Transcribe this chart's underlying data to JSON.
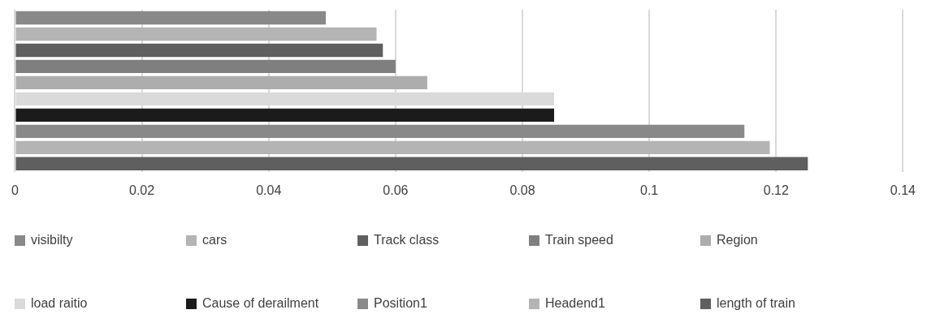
{
  "chart_data": {
    "type": "bar",
    "orientation": "horizontal",
    "categories": [
      null
    ],
    "series": [
      {
        "name": "visibilty",
        "color": "#898989",
        "values": [
          0.049
        ]
      },
      {
        "name": "cars",
        "color": "#b4b4b4",
        "values": [
          0.057
        ]
      },
      {
        "name": "Track class",
        "color": "#5f5f5f",
        "values": [
          0.058
        ]
      },
      {
        "name": "Train speed",
        "color": "#7f7f7f",
        "values": [
          0.06
        ]
      },
      {
        "name": "Region",
        "color": "#adadad",
        "values": [
          0.065
        ]
      },
      {
        "name": "load raitio",
        "color": "#dadada",
        "values": [
          0.085
        ]
      },
      {
        "name": "Cause of derailment",
        "color": "#1b1b1b",
        "values": [
          0.085
        ]
      },
      {
        "name": "Position1",
        "color": "#898989",
        "values": [
          0.115
        ]
      },
      {
        "name": "Headend1",
        "color": "#b4b4b4",
        "values": [
          0.119
        ]
      },
      {
        "name": "length of train",
        "color": "#5f5f5f",
        "values": [
          0.125
        ]
      }
    ],
    "xlim": [
      0,
      0.14
    ],
    "xticks": [
      0,
      0.02,
      0.04,
      0.06,
      0.08,
      0.1,
      0.12,
      0.14
    ],
    "grid": "x",
    "legend": "bottom",
    "tick_labels": "x"
  }
}
